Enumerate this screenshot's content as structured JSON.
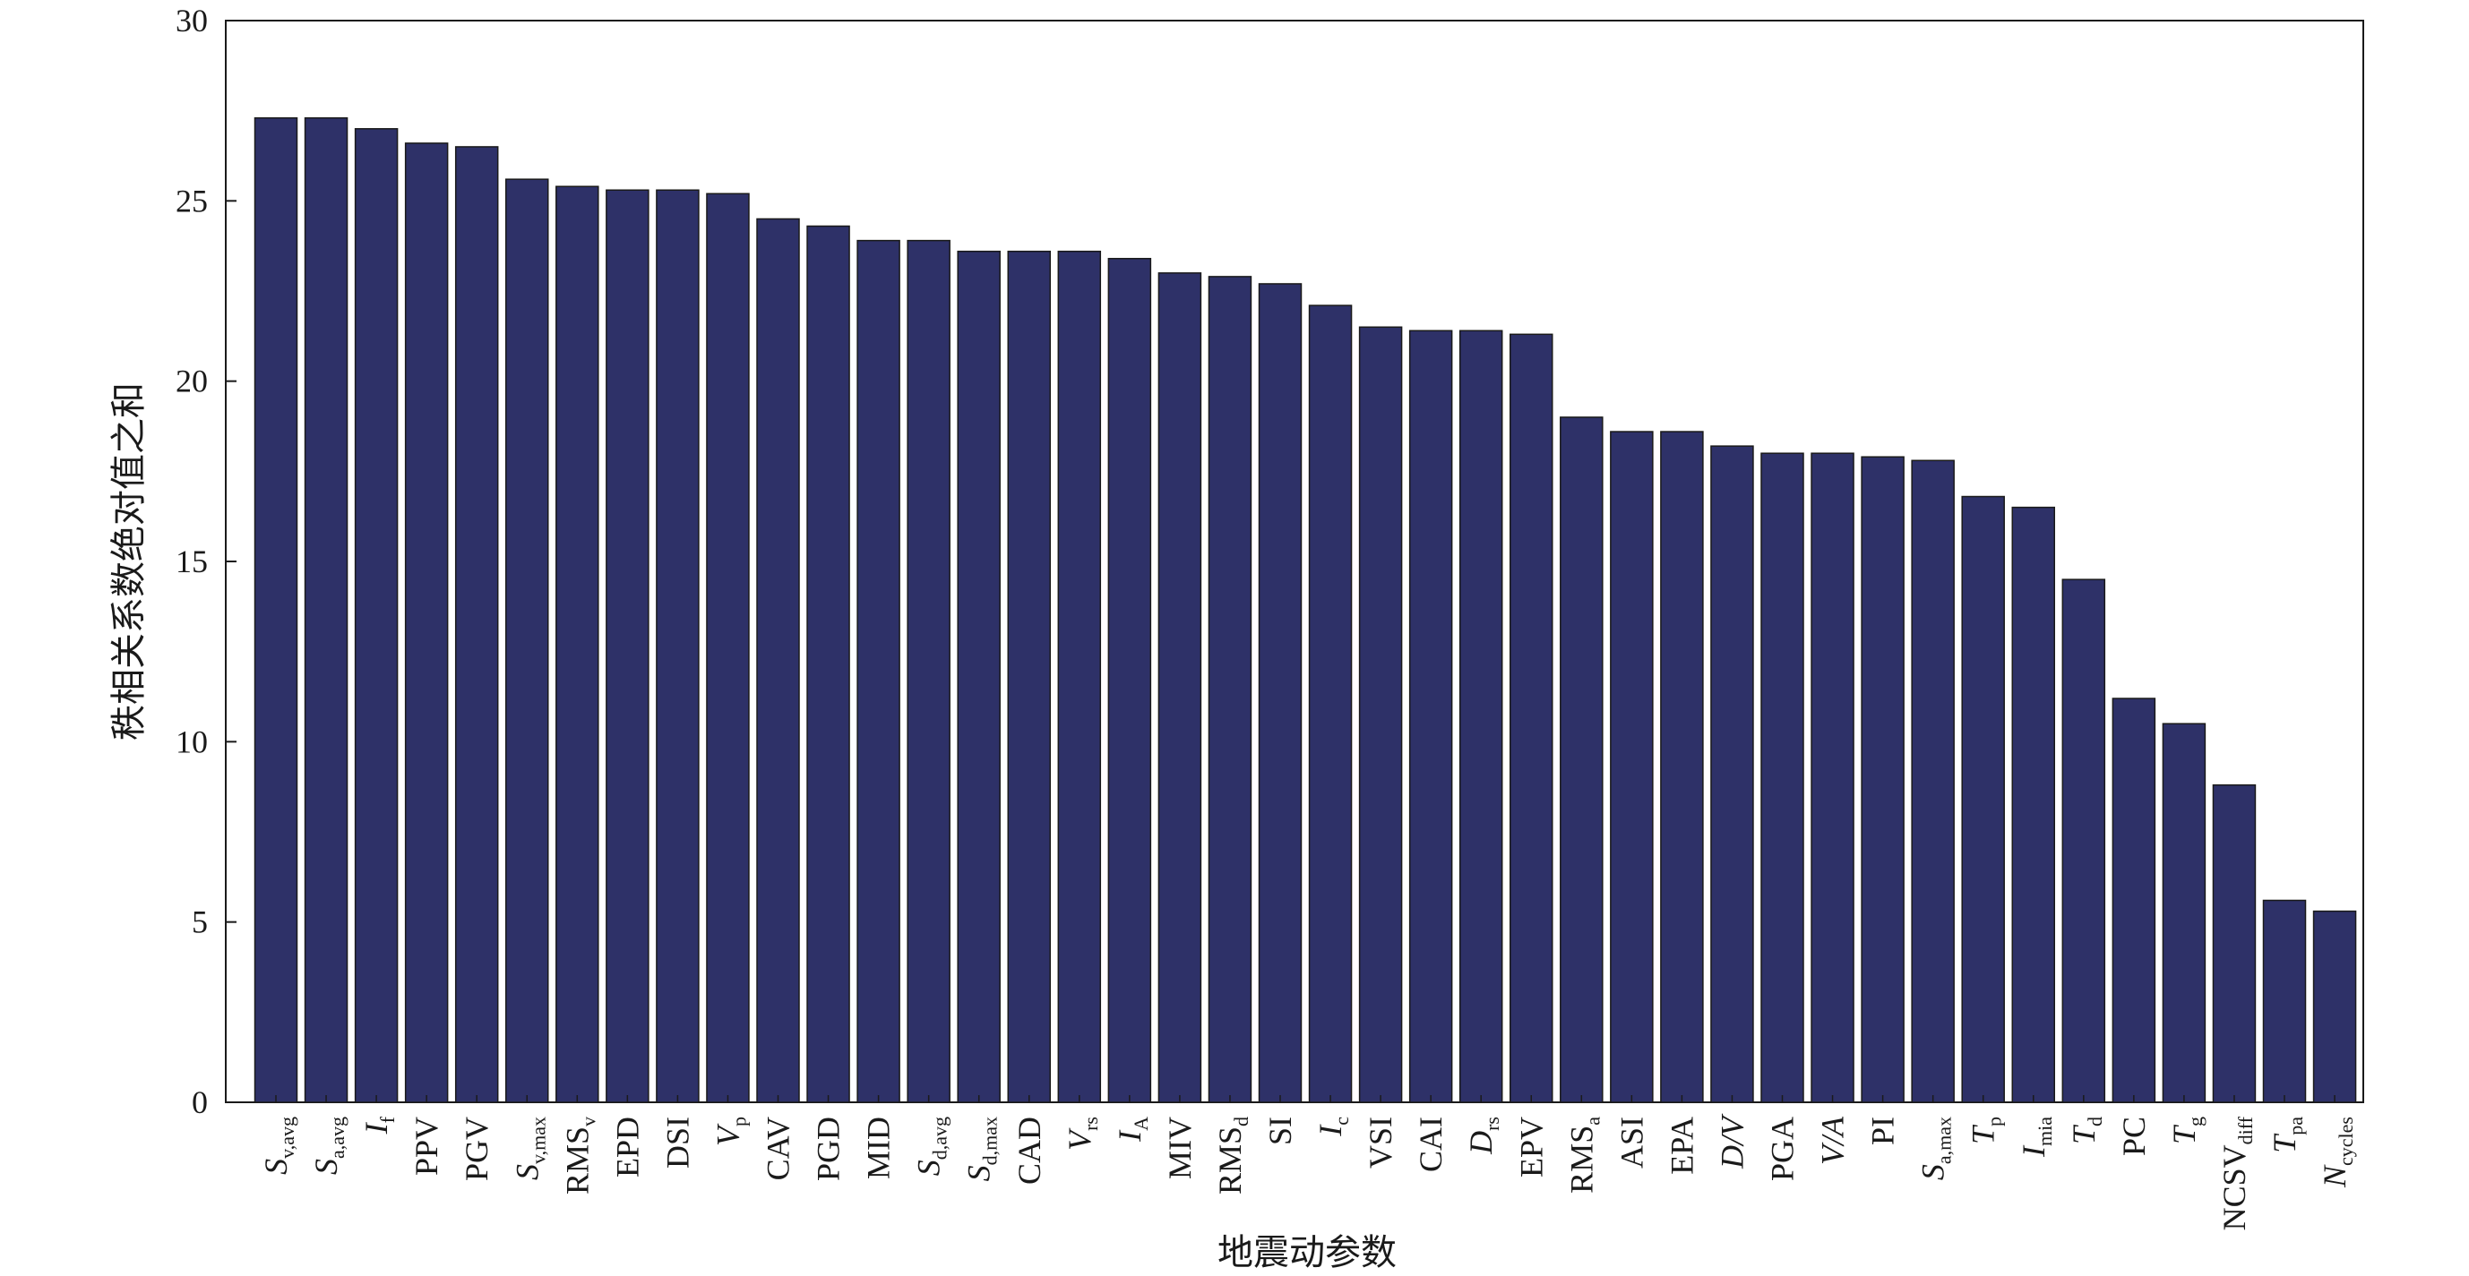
{
  "chart_data": {
    "type": "bar",
    "title": "",
    "xlabel": "地震动参数",
    "ylabel": "秩相关系数绝对值之和",
    "ylim": [
      0,
      30
    ],
    "yticks": [
      0,
      5,
      10,
      15,
      20,
      25,
      30
    ],
    "grid": false,
    "bar_color": "#2e3168",
    "categories": [
      {
        "base": "S",
        "sub": "v,avg",
        "italic": true
      },
      {
        "base": "S",
        "sub": "a,avg",
        "italic": true
      },
      {
        "base": "I",
        "sub": "f",
        "italic": true
      },
      {
        "base": "PPV",
        "sub": "",
        "italic": false
      },
      {
        "base": "PGV",
        "sub": "",
        "italic": false
      },
      {
        "base": "S",
        "sub": "v,max",
        "italic": true
      },
      {
        "base": "RMS",
        "sub": "v",
        "italic": false
      },
      {
        "base": "EPD",
        "sub": "",
        "italic": false
      },
      {
        "base": "DSI",
        "sub": "",
        "italic": false
      },
      {
        "base": "V",
        "sub": "p",
        "italic": true
      },
      {
        "base": "CAV",
        "sub": "",
        "italic": false
      },
      {
        "base": "PGD",
        "sub": "",
        "italic": false
      },
      {
        "base": "MID",
        "sub": "",
        "italic": false
      },
      {
        "base": "S",
        "sub": "d,avg",
        "italic": true
      },
      {
        "base": "S",
        "sub": "d,max",
        "italic": true
      },
      {
        "base": "CAD",
        "sub": "",
        "italic": false
      },
      {
        "base": "V",
        "sub": "rs",
        "italic": true
      },
      {
        "base": "I",
        "sub": "A",
        "italic": true
      },
      {
        "base": "MIV",
        "sub": "",
        "italic": false
      },
      {
        "base": "RMS",
        "sub": "d",
        "italic": false
      },
      {
        "base": "SI",
        "sub": "",
        "italic": false
      },
      {
        "base": "I",
        "sub": "c",
        "italic": true
      },
      {
        "base": "VSI",
        "sub": "",
        "italic": false
      },
      {
        "base": "CAI",
        "sub": "",
        "italic": false
      },
      {
        "base": "D",
        "sub": "rs",
        "italic": true
      },
      {
        "base": "EPV",
        "sub": "",
        "italic": false
      },
      {
        "base": "RMS",
        "sub": "a",
        "italic": false
      },
      {
        "base": "ASI",
        "sub": "",
        "italic": false
      },
      {
        "base": "EPA",
        "sub": "",
        "italic": false
      },
      {
        "base": "D/V",
        "sub": "",
        "italic": true
      },
      {
        "base": "PGA",
        "sub": "",
        "italic": false
      },
      {
        "base": "V/A",
        "sub": "",
        "italic": true
      },
      {
        "base": "PI",
        "sub": "",
        "italic": false
      },
      {
        "base": "S",
        "sub": "a,max",
        "italic": true
      },
      {
        "base": "T",
        "sub": "p",
        "italic": true
      },
      {
        "base": "I",
        "sub": "mia",
        "italic": true
      },
      {
        "base": "T",
        "sub": "d",
        "italic": true
      },
      {
        "base": "PC",
        "sub": "",
        "italic": false
      },
      {
        "base": "T",
        "sub": "g",
        "italic": true
      },
      {
        "base": "NCSV",
        "sub": "diff",
        "italic": false
      },
      {
        "base": "T",
        "sub": "pa",
        "italic": true
      },
      {
        "base": "N",
        "sub": "cycles",
        "italic": true
      }
    ],
    "values": [
      27.3,
      27.3,
      27.0,
      26.6,
      26.5,
      25.6,
      25.4,
      25.3,
      25.3,
      25.2,
      24.5,
      24.3,
      23.9,
      23.9,
      23.6,
      23.6,
      23.6,
      23.4,
      23.0,
      22.9,
      22.7,
      22.1,
      21.5,
      21.4,
      21.4,
      21.3,
      19.0,
      18.6,
      18.6,
      18.2,
      18.0,
      18.0,
      17.9,
      17.8,
      16.8,
      16.5,
      14.5,
      11.2,
      10.5,
      8.8,
      5.6,
      5.3
    ]
  }
}
